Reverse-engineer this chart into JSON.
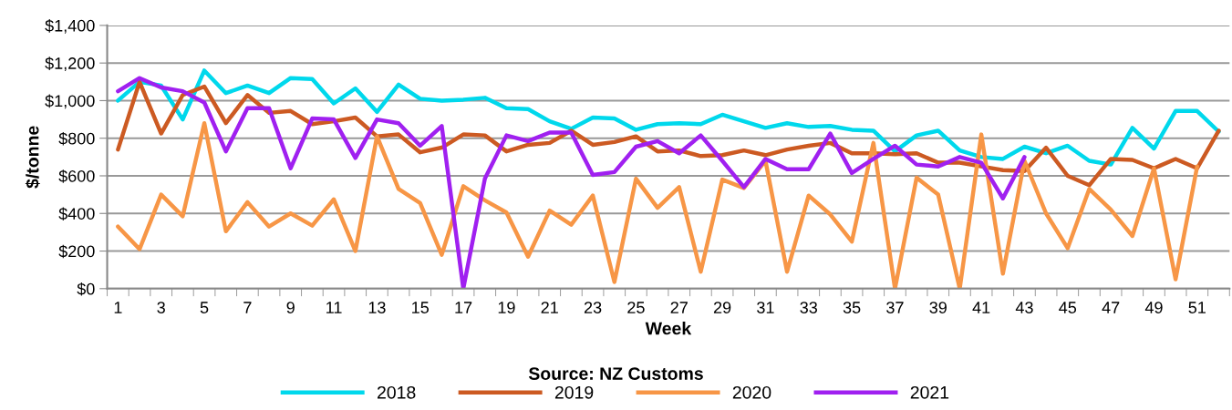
{
  "chart_data": {
    "type": "line",
    "xlabel": "Week",
    "ylabel": "$/tonne",
    "annotations": [
      "Source: NZ Customs"
    ],
    "categories": [
      "1",
      null,
      "3",
      null,
      "5",
      null,
      "7",
      null,
      "9",
      null,
      "11",
      null,
      "13",
      null,
      "15",
      null,
      "17",
      null,
      "19",
      null,
      "21",
      null,
      "23",
      null,
      "25",
      null,
      "27",
      null,
      "29",
      null,
      "31",
      null,
      "33",
      null,
      "35",
      null,
      "37",
      null,
      "39",
      null,
      "41",
      null,
      "43",
      null,
      "45",
      null,
      "47",
      null,
      "49",
      null,
      "51",
      null
    ],
    "ylim": [
      0,
      1400
    ],
    "yticks": [
      {
        "value": 0,
        "label": "$0"
      },
      {
        "value": 200,
        "label": "$200"
      },
      {
        "value": 400,
        "label": "$400"
      },
      {
        "value": 600,
        "label": "$600"
      },
      {
        "value": 800,
        "label": "$800"
      },
      {
        "value": 1000,
        "label": "$1,000"
      },
      {
        "value": 1200,
        "label": "$1,200"
      },
      {
        "value": 1400,
        "label": "$1,400"
      }
    ],
    "grid": "y",
    "legend": "bottom",
    "marker": "none",
    "line_style": "solid",
    "series": [
      {
        "name": "2018",
        "color": "#00d8ec",
        "values": [
          1000,
          1100,
          1080,
          900,
          1160,
          1040,
          1080,
          1040,
          1120,
          1115,
          985,
          1065,
          940,
          1085,
          1010,
          1000,
          1005,
          1015,
          960,
          955,
          890,
          850,
          910,
          905,
          845,
          875,
          880,
          875,
          925,
          890,
          855,
          880,
          860,
          865,
          845,
          840,
          730,
          815,
          840,
          735,
          700,
          690,
          755,
          720,
          760,
          680,
          660,
          855,
          745,
          945,
          945,
          835
        ]
      },
      {
        "name": "2019",
        "color": "#cc5a22",
        "values": [
          740,
          1100,
          825,
          1030,
          1075,
          880,
          1030,
          935,
          945,
          875,
          890,
          910,
          810,
          820,
          725,
          750,
          820,
          815,
          730,
          765,
          775,
          840,
          765,
          780,
          810,
          730,
          735,
          705,
          710,
          735,
          710,
          740,
          760,
          775,
          720,
          720,
          715,
          720,
          670,
          670,
          650,
          630,
          625,
          750,
          600,
          550,
          690,
          685,
          640,
          690,
          640,
          840
        ]
      },
      {
        "name": "2020",
        "color": "#f79646",
        "values": [
          330,
          210,
          500,
          385,
          880,
          305,
          460,
          330,
          400,
          335,
          475,
          200,
          810,
          530,
          455,
          180,
          545,
          470,
          405,
          170,
          415,
          340,
          495,
          35,
          585,
          430,
          540,
          90,
          580,
          535,
          680,
          90,
          495,
          395,
          250,
          775,
          0,
          590,
          500,
          0,
          820,
          80,
          680,
          400,
          215,
          530,
          420,
          280,
          640,
          50,
          650,
          null
        ]
      },
      {
        "name": "2021",
        "color": "#a020f0",
        "values": [
          1050,
          1120,
          1070,
          1050,
          990,
          730,
          960,
          960,
          640,
          905,
          900,
          695,
          900,
          880,
          760,
          865,
          0,
          585,
          815,
          785,
          830,
          830,
          605,
          620,
          755,
          785,
          720,
          815,
          680,
          540,
          690,
          635,
          635,
          825,
          615,
          690,
          760,
          660,
          650,
          700,
          670,
          480,
          700,
          null,
          null,
          null,
          null,
          null,
          null,
          null,
          null,
          null
        ]
      }
    ]
  }
}
